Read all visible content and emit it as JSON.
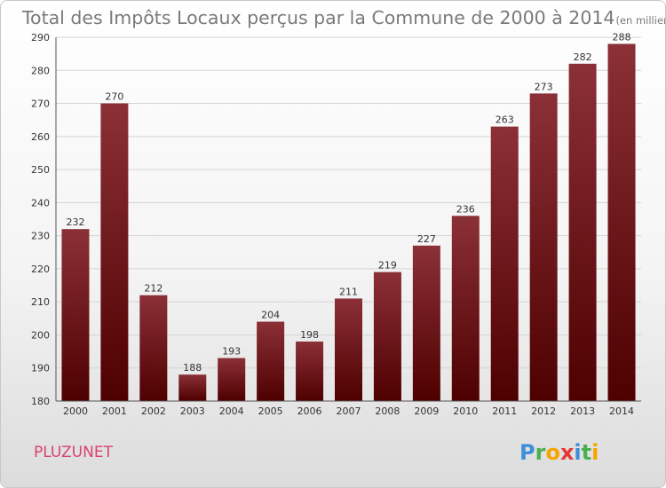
{
  "chart_data": {
    "type": "bar",
    "title": "Total des Impôts Locaux perçus par la Commune de 2000 à 2014",
    "title_unit": "(en milliers d'€)",
    "xlabel": "",
    "ylabel": "",
    "categories": [
      "2000",
      "2001",
      "2002",
      "2003",
      "2004",
      "2005",
      "2006",
      "2007",
      "2008",
      "2009",
      "2010",
      "2011",
      "2012",
      "2013",
      "2014"
    ],
    "values": [
      232,
      270,
      212,
      188,
      193,
      204,
      198,
      211,
      219,
      227,
      236,
      263,
      273,
      282,
      288
    ],
    "ylim": [
      180,
      290
    ],
    "yticks": [
      180,
      190,
      200,
      210,
      220,
      230,
      240,
      250,
      260,
      270,
      280,
      290
    ],
    "grid": true,
    "bar_color_top": "#8b3037",
    "bar_color_bottom": "#4e0000"
  },
  "commune_name": "PLUZUNET",
  "logo": {
    "letters": [
      "P",
      "r",
      "o",
      "x",
      "i",
      "t",
      "i"
    ],
    "colors": [
      "#3f8fd8",
      "#4caf50",
      "#f7a400",
      "#e53935",
      "#3f8fd8",
      "#4caf50",
      "#f7a400"
    ]
  }
}
